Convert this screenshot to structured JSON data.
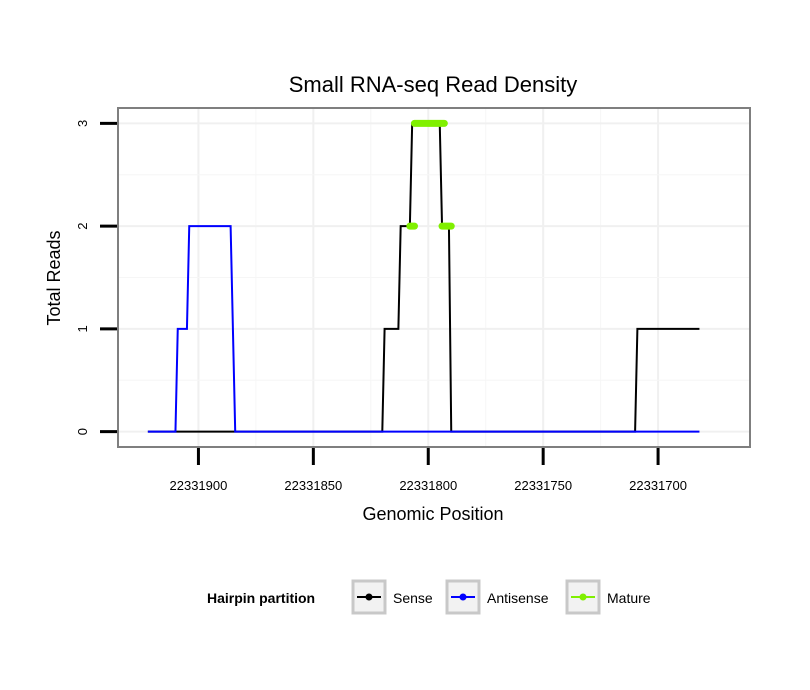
{
  "chart_data": {
    "type": "line",
    "title": "Small RNA-seq Read Density",
    "xlabel": "Genomic Position",
    "ylabel": "Total Reads",
    "x_reversed": true,
    "xlim": [
      22331935,
      22331660
    ],
    "ylim": [
      -0.15,
      3.15
    ],
    "x_ticks": [
      22331900,
      22331850,
      22331800,
      22331750,
      22331700
    ],
    "x_tick_labels": [
      "22331900",
      "22331850",
      "22331800",
      "22331750",
      "22331700"
    ],
    "y_ticks": [
      0,
      1,
      2,
      3
    ],
    "y_tick_labels": [
      "0",
      "1",
      "2",
      "3"
    ],
    "grid": true,
    "legend_title": "Hairpin partition",
    "legend_position": "bottom",
    "series": [
      {
        "name": "Sense",
        "color": "#000000",
        "x": [
          22331922,
          22331820,
          22331819,
          22331813,
          22331812,
          22331808,
          22331807,
          22331795,
          22331794,
          22331791,
          22331790,
          22331710,
          22331709,
          22331682
        ],
        "y": [
          0,
          0,
          1,
          1,
          2,
          2,
          3,
          3,
          2,
          2,
          0,
          0,
          1,
          1
        ]
      },
      {
        "name": "Antisense",
        "color": "#0000ff",
        "x": [
          22331922,
          22331910,
          22331909,
          22331905,
          22331904,
          22331886,
          22331884,
          22331682
        ],
        "y": [
          0,
          0,
          1,
          1,
          2,
          2,
          0,
          0
        ]
      },
      {
        "name": "Mature",
        "color": "#80f000",
        "segments": [
          {
            "x": [
              22331808,
              22331806
            ],
            "y": [
              2,
              2
            ]
          },
          {
            "x": [
              22331806,
              22331793
            ],
            "y": [
              3,
              3
            ]
          },
          {
            "x": [
              22331794,
              22331790
            ],
            "y": [
              2,
              2
            ]
          }
        ]
      }
    ]
  }
}
